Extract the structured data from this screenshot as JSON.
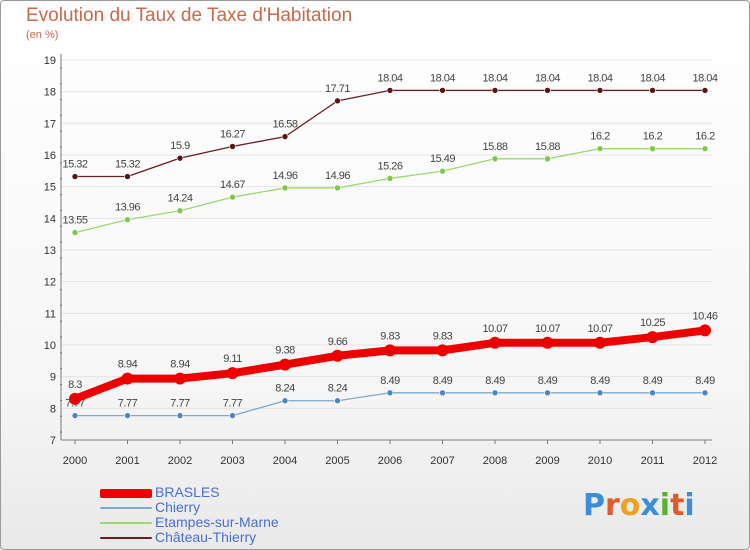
{
  "colors": {
    "title": "#c66a4a",
    "axis": "#7a7a7a",
    "grid": "#e4e4e4",
    "legend_text": "#4a6fd0"
  },
  "logo": {
    "text": "Proxiti",
    "letters": [
      "P",
      "r",
      "o",
      "x",
      "i",
      "t",
      "i"
    ],
    "letter_colors": [
      "#3a8fd8",
      "#e05a2a",
      "#f0a020",
      "#3a8fd8",
      "#5cb030",
      "#e05a2a",
      "#3a8fd8"
    ]
  },
  "chart_data": {
    "type": "line",
    "title": "Evolution du Taux de Taxe d'Habitation",
    "subtitle": "(en %)",
    "xlabel": "",
    "ylabel": "",
    "ylim": [
      7,
      19
    ],
    "yticks": [
      "7",
      "8",
      "9",
      "10",
      "11",
      "12",
      "13",
      "14",
      "15",
      "16",
      "17",
      "18",
      "19"
    ],
    "grid": true,
    "legend_position": "bottom-left",
    "categories": [
      "2000",
      "2001",
      "2002",
      "2003",
      "2004",
      "2005",
      "2006",
      "2007",
      "2008",
      "2009",
      "2010",
      "2011",
      "2012"
    ],
    "series": [
      {
        "name": "Château-Thierry",
        "color": "#6b1e1e",
        "marker": "#5a1414",
        "style": "thin",
        "values": [
          15.32,
          15.32,
          15.9,
          16.27,
          16.58,
          17.71,
          18.04,
          18.04,
          18.04,
          18.04,
          18.04,
          18.04,
          18.04
        ],
        "labels": [
          "15.32",
          "15.32",
          "15.9",
          "16.27",
          "16.58",
          "17.71",
          "18.04",
          "18.04",
          "18.04",
          "18.04",
          "18.04",
          "18.04",
          "18.04"
        ]
      },
      {
        "name": "Etampes-sur-Marne",
        "color": "#9ad870",
        "marker": "#7cc94a",
        "style": "thin",
        "values": [
          13.55,
          13.96,
          14.24,
          14.67,
          14.96,
          14.96,
          15.26,
          15.49,
          15.88,
          15.88,
          16.2,
          16.2,
          16.2
        ],
        "labels": [
          "13.55",
          "13.96",
          "14.24",
          "14.67",
          "14.96",
          "14.96",
          "15.26",
          "15.49",
          "15.88",
          "15.88",
          "16.2",
          "16.2",
          "16.2"
        ]
      },
      {
        "name": "Chierry",
        "color": "#7aaad0",
        "marker": "#4a86c2",
        "style": "thin",
        "values": [
          7.77,
          7.77,
          7.77,
          7.77,
          8.24,
          8.24,
          8.49,
          8.49,
          8.49,
          8.49,
          8.49,
          8.49,
          8.49
        ],
        "labels": [
          "7.77",
          "7.77",
          "7.77",
          "7.77",
          "8.24",
          "8.24",
          "8.49",
          "8.49",
          "8.49",
          "8.49",
          "8.49",
          "8.49",
          "8.49"
        ]
      },
      {
        "name": "BRASLES",
        "color": "#ee0000",
        "marker": "#ee0000",
        "style": "thick",
        "values": [
          8.3,
          8.94,
          8.94,
          9.11,
          9.38,
          9.66,
          9.83,
          9.83,
          10.07,
          10.07,
          10.07,
          10.25,
          10.46
        ],
        "labels": [
          "8.3",
          "8.94",
          "8.94",
          "9.11",
          "9.38",
          "9.66",
          "9.83",
          "9.83",
          "10.07",
          "10.07",
          "10.07",
          "10.25",
          "10.46"
        ]
      }
    ],
    "legend": [
      "BRASLES",
      "Chierry",
      "Etampes-sur-Marne",
      "Château-Thierry"
    ]
  }
}
